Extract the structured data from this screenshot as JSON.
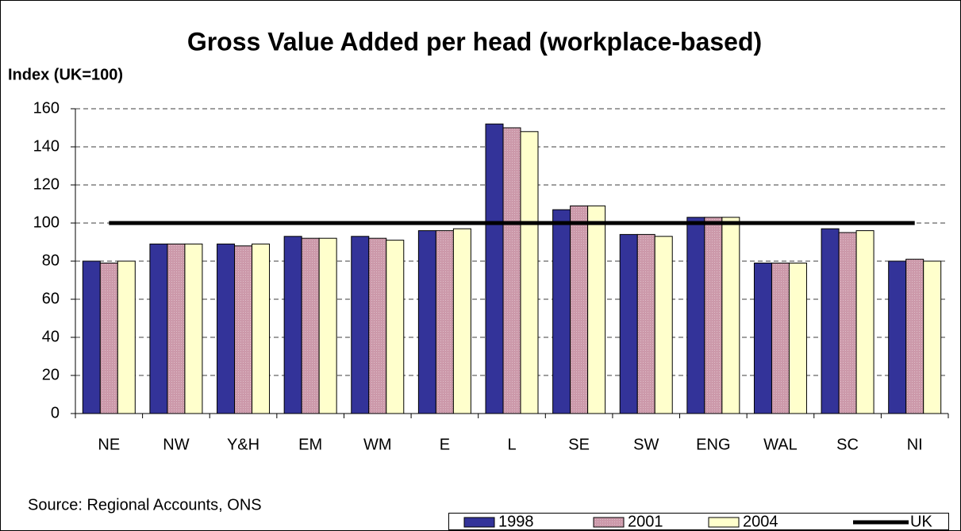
{
  "chart_data": {
    "type": "bar",
    "title": "Gross Value Added per head (workplace-based)",
    "y_label": "Index (UK=100)",
    "source": "Source: Regional Accounts, ONS",
    "categories": [
      "NE",
      "NW",
      "Y&H",
      "EM",
      "WM",
      "E",
      "L",
      "SE",
      "SW",
      "ENG",
      "WAL",
      "SC",
      "NI"
    ],
    "series": [
      {
        "name": "1998",
        "color": "#333399",
        "values": [
          80,
          89,
          89,
          93,
          93,
          96,
          152,
          107,
          94,
          103,
          79,
          97,
          80
        ]
      },
      {
        "name": "2001",
        "color": "#cc99aa",
        "values": [
          79,
          89,
          88,
          92,
          92,
          96,
          150,
          109,
          94,
          103,
          79,
          95,
          81
        ]
      },
      {
        "name": "2004",
        "color": "#ffffcc",
        "values": [
          80,
          89,
          89,
          92,
          91,
          97,
          148,
          109,
          93,
          103,
          79,
          96,
          80
        ]
      },
      {
        "name": "UK",
        "color": "#000000",
        "type": "line",
        "values": [
          100,
          100,
          100,
          100,
          100,
          100,
          100,
          100,
          100,
          100,
          100,
          100,
          100
        ]
      }
    ],
    "ylim": [
      0,
      160
    ],
    "yticks": [
      0,
      20,
      40,
      60,
      80,
      100,
      120,
      140,
      160
    ],
    "grid": true,
    "legend": "bottom-right"
  }
}
